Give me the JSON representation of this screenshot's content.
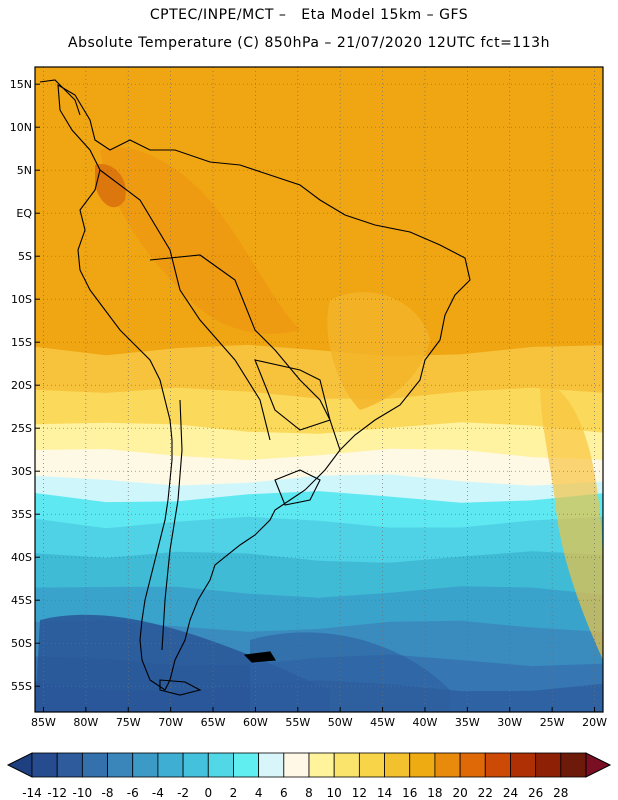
{
  "header": {
    "line1": "CPTEC/INPE/MCT –   Eta Model 15km – GFS",
    "line2": "Absolute Temperature (C) 850hPa – 21/07/2020 12UTC fct=113h"
  },
  "map": {
    "lon_range": [
      -86,
      -19
    ],
    "lat_range": [
      -58,
      17
    ],
    "lat_ticks": [
      "15N",
      "10N",
      "5N",
      "EQ",
      "5S",
      "10S",
      "15S",
      "20S",
      "25S",
      "30S",
      "35S",
      "40S",
      "45S",
      "50S",
      "55S"
    ],
    "lat_values": [
      15,
      10,
      5,
      0,
      -5,
      -10,
      -15,
      -20,
      -25,
      -30,
      -35,
      -40,
      -45,
      -50,
      -55
    ],
    "lon_ticks": [
      "85W",
      "80W",
      "75W",
      "70W",
      "65W",
      "60W",
      "55W",
      "50W",
      "45W",
      "40W",
      "35W",
      "30W",
      "25W",
      "20W"
    ],
    "lon_values": [
      -85,
      -80,
      -75,
      -70,
      -65,
      -60,
      -55,
      -50,
      -45,
      -40,
      -35,
      -30,
      -25,
      -20
    ],
    "temperature_bands": [
      {
        "lat_top": 17,
        "lat_bottom": -16,
        "temp": 19,
        "color": "#f0a512"
      },
      {
        "lat_top": -16,
        "lat_bottom": -21,
        "temp": 17,
        "color": "#f7c23c"
      },
      {
        "lat_top": -21,
        "lat_bottom": -25,
        "temp": 15,
        "color": "#fbd95a"
      },
      {
        "lat_top": -25,
        "lat_bottom": -28,
        "temp": 11,
        "color": "#fff2a0"
      },
      {
        "lat_top": -28,
        "lat_bottom": -31,
        "temp": 7,
        "color": "#fef9e4"
      },
      {
        "lat_top": -31,
        "lat_bottom": -33,
        "temp": 5,
        "color": "#cff6fb"
      },
      {
        "lat_top": -33,
        "lat_bottom": -36,
        "temp": 3,
        "color": "#5ee8f2"
      },
      {
        "lat_top": -36,
        "lat_bottom": -40,
        "temp": 1,
        "color": "#4fd1e6"
      },
      {
        "lat_top": -40,
        "lat_bottom": -44,
        "temp": -1,
        "color": "#3fbbd6"
      },
      {
        "lat_top": -44,
        "lat_bottom": -48,
        "temp": -3,
        "color": "#3aa3cb"
      },
      {
        "lat_top": -48,
        "lat_bottom": -52,
        "temp": -5,
        "color": "#3a8cbf"
      },
      {
        "lat_top": -52,
        "lat_bottom": -55,
        "temp": -7,
        "color": "#3576b3"
      },
      {
        "lat_top": -55,
        "lat_bottom": -58,
        "temp": -9,
        "color": "#2f62a3"
      }
    ]
  },
  "colorbar": {
    "labels": [
      "-14",
      "-12",
      "-10",
      "-8",
      "-6",
      "-4",
      "-2",
      "0",
      "2",
      "4",
      "6",
      "8",
      "10",
      "12",
      "14",
      "16",
      "18",
      "20",
      "22",
      "24",
      "26",
      "28"
    ],
    "colors": [
      "#264b8f",
      "#2d5b9c",
      "#3470ac",
      "#3a86bb",
      "#3c9ac7",
      "#3faed3",
      "#44c1dd",
      "#52d7e6",
      "#61eef0",
      "#d8f6fa",
      "#fff8e6",
      "#fff39b",
      "#fbe46c",
      "#f8d448",
      "#f3c12e",
      "#eeab12",
      "#e88b0d",
      "#df6907",
      "#cd4a06",
      "#b03005",
      "#8e2006",
      "#6e1a0a"
    ],
    "under_color": "#1e3f80",
    "over_color": "#7a0f24"
  },
  "colors": {
    "frame": "#000000",
    "coast": "#000000",
    "grid": "#6e6e6e"
  }
}
